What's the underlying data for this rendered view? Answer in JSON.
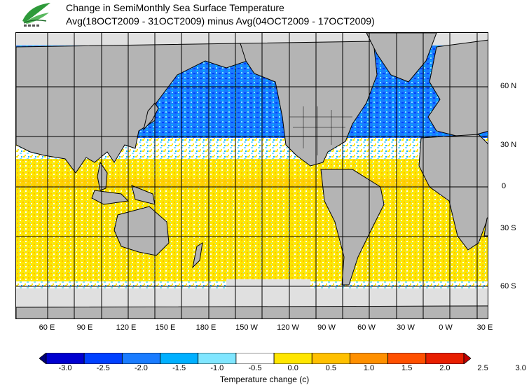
{
  "title_line1": "Change in SemiMonthly Sea Surface Temperature",
  "title_line2": "Avg(18OCT2009 - 31OCT2009) minus Avg(04OCT2009 - 17OCT2009)",
  "x_ticks": [
    "60 E",
    "90 E",
    "120 E",
    "150 E",
    "180 E",
    "150 W",
    "120 W",
    "90 W",
    "60 W",
    "30 W",
    "0 W",
    "30 E"
  ],
  "y_ticks": [
    "60 N",
    "30 N",
    "0",
    "30 S",
    "60 S"
  ],
  "colorbar": {
    "ticks": [
      "-3.0",
      "-2.5",
      "-2.0",
      "-1.5",
      "-1.0",
      "-0.5",
      "0.0",
      "0.5",
      "1.0",
      "1.5",
      "2.0",
      "2.5",
      "3.0"
    ],
    "colors": [
      "#00007a",
      "#0000d0",
      "#0040ff",
      "#1a7cff",
      "#00b0ff",
      "#80e6ff",
      "#ffffff",
      "#ffe600",
      "#ffc000",
      "#ff9000",
      "#ff5000",
      "#e81e00",
      "#c00000"
    ],
    "label": "Temperature change  (c)"
  },
  "colors": {
    "land": "#b4b4b4",
    "ice": "#e0e0e0",
    "cooling": "#1a7cff",
    "warming": "#ffd800"
  },
  "logo": "leaf-logo-icon"
}
